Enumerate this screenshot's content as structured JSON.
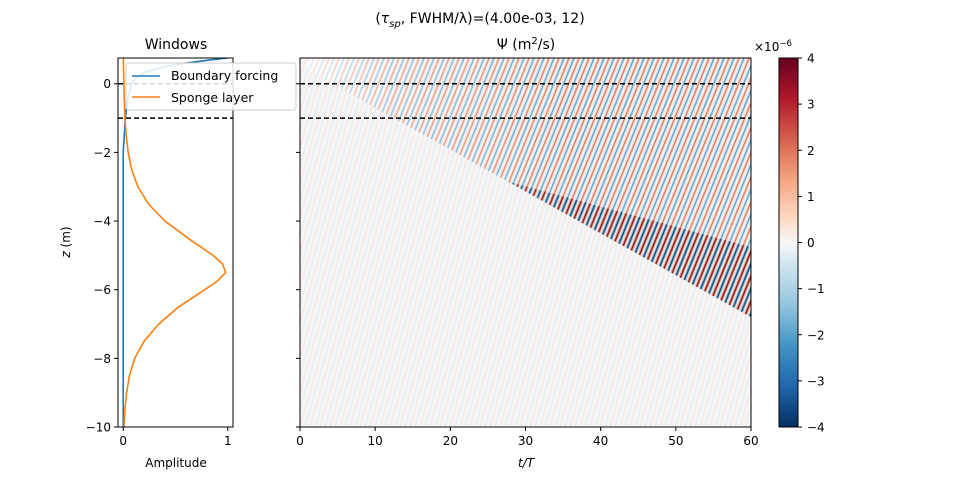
{
  "figure": {
    "suptitle_prefix": "(",
    "suptitle_tau": "τ",
    "suptitle_tau_sub": "sp",
    "suptitle_rest": ", FWHM/λ)=(4.00e-03, 12)"
  },
  "chart_data": [
    {
      "type": "line",
      "title": "Windows",
      "xlabel": "Amplitude",
      "ylabel": "z (m)",
      "xlim": [
        -0.05,
        1.05
      ],
      "ylim": [
        -10,
        0.75
      ],
      "xticks": [
        0,
        1
      ],
      "yticks": [
        -10,
        -8,
        -6,
        -4,
        -2,
        0
      ],
      "hlines": [
        0,
        -1
      ],
      "legend_position": "upper-right",
      "series": [
        {
          "name": "Boundary forcing",
          "color": "#1f77b4",
          "z": [
            -10,
            -2,
            -1.5,
            -1,
            -0.5,
            0,
            0.2,
            0.35,
            0.5,
            0.6,
            0.7,
            0.75
          ],
          "amplitude": [
            0,
            0,
            0.01,
            0.02,
            0.04,
            0.08,
            0.13,
            0.22,
            0.4,
            0.6,
            0.85,
            1.0
          ]
        },
        {
          "name": "Sponge layer",
          "color": "#ff7f0e",
          "z": [
            -10,
            -9.5,
            -9,
            -8.5,
            -8,
            -7.5,
            -7,
            -6.5,
            -6,
            -5.75,
            -5.5,
            -5.25,
            -5,
            -4.5,
            -4,
            -3.5,
            -3,
            -2.5,
            -2,
            -1.5,
            -1,
            0,
            0.75
          ],
          "amplitude": [
            0.008,
            0.016,
            0.032,
            0.06,
            0.11,
            0.2,
            0.34,
            0.53,
            0.78,
            0.9,
            0.98,
            0.95,
            0.86,
            0.62,
            0.4,
            0.24,
            0.14,
            0.08,
            0.048,
            0.028,
            0.016,
            0.005,
            0.002
          ]
        }
      ]
    },
    {
      "type": "heatmap",
      "title_prefix": "Ψ (m",
      "title_sup": "2",
      "title_suffix": "/s)",
      "xlabel": "t/T",
      "xlim": [
        0,
        60
      ],
      "ylim": [
        -10,
        0.75
      ],
      "xticks": [
        0,
        10,
        20,
        30,
        40,
        50,
        60
      ],
      "hlines": [
        0,
        -1
      ],
      "wavefront_top": {
        "t": 1,
        "z": 0.4
      },
      "wavefront_tip": {
        "t": 60,
        "z": -6.8
      },
      "colormap": "RdBu_r",
      "colorbar": {
        "min": -4,
        "max": 4,
        "ticks": [
          -4,
          -3,
          -2,
          -1,
          0,
          1,
          2,
          3,
          4
        ],
        "multiplier_base": "×10",
        "multiplier_exp": "−6",
        "colors": [
          "#053061",
          "#2166ac",
          "#4393c3",
          "#92c5de",
          "#f7f7f7",
          "#fddbc7",
          "#f4a582",
          "#d6604d",
          "#b2182b",
          "#67001f"
        ]
      }
    }
  ]
}
